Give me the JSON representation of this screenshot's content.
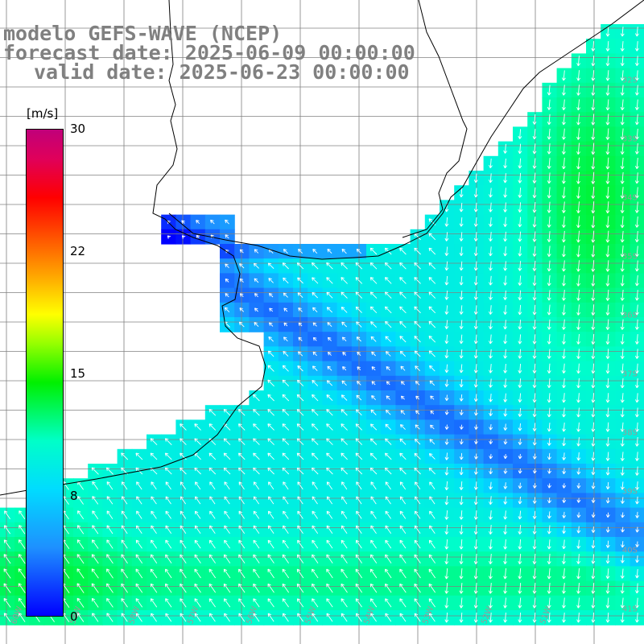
{
  "title": {
    "line1": "modelo GEFS-WAVE (NCEP)",
    "line2": "forecast date: 2025-06-09 00:00:00",
    "line3": "valid date: 2025-06-23 00:00:00"
  },
  "colorbar": {
    "unit": "[m/s]",
    "ticks": [
      {
        "value": 30,
        "label": "30"
      },
      {
        "value": 22,
        "label": "22"
      },
      {
        "value": 15,
        "label": "15"
      },
      {
        "value": 8,
        "label": "8"
      },
      {
        "value": 0,
        "label": "0"
      }
    ],
    "range": [
      0,
      30
    ]
  },
  "map": {
    "lon_labels": [
      "60W",
      "59W",
      "58W",
      "57W",
      "56W",
      "55W",
      "54W",
      "53W",
      "52W",
      "51W"
    ],
    "lat_labels": [
      "32S",
      "33S",
      "34S",
      "35S",
      "36S",
      "37S",
      "38S",
      "39S",
      "40S",
      "41S"
    ],
    "land_color": "#ffffff",
    "grid_color": "#808080",
    "coast_color": "#000000",
    "arrow_color": "#ffffff"
  }
}
